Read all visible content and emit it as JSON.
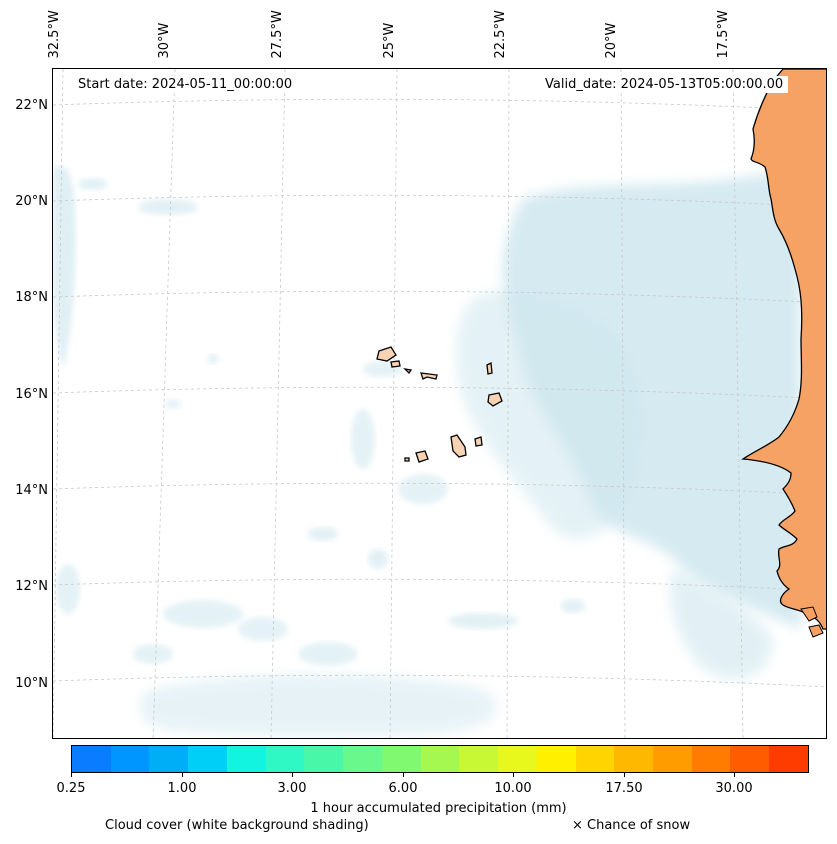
{
  "map": {
    "region": "Cabo Verde and West African coast",
    "projection_graticule": "dashed-light-grey",
    "start_date_label": "Start date: 2024-05-11_00:00:00",
    "valid_date_label": "Valid_date: 2024-05-13T05:00:00.00",
    "longitude_labels": [
      "32.5°W",
      "30°W",
      "27.5°W",
      "25°W",
      "22.5°W",
      "20°W",
      "17.5°W"
    ],
    "latitude_labels": [
      "22°N",
      "20°N",
      "18°N",
      "16°N",
      "14°N",
      "12°N",
      "10°N"
    ],
    "colors": {
      "land": "#f6a265",
      "island_land": "#f8d3b3",
      "cloud_shading": "#cfe7ef",
      "coastline": "#000000",
      "gridline": "#c8c8c8"
    }
  },
  "colorbar": {
    "title": "1 hour accumulated precipitation (mm)",
    "tick_labels": [
      "0.25",
      "1.00",
      "3.00",
      "6.00",
      "10.00",
      "17.50",
      "30.00"
    ],
    "colors": [
      "#0a7cff",
      "#0096ff",
      "#00aef8",
      "#00d0f8",
      "#13f4e0",
      "#2ff8c4",
      "#48f8a8",
      "#68f88c",
      "#80f870",
      "#a4f850",
      "#c8f834",
      "#e8f81c",
      "#fff000",
      "#ffd400",
      "#ffb800",
      "#ff9c00",
      "#ff7c00",
      "#ff5c00",
      "#ff3c00"
    ]
  },
  "legend": {
    "cloud_cover_note": "Cloud cover (white background shading)",
    "snow_note": "× Chance of snow"
  }
}
